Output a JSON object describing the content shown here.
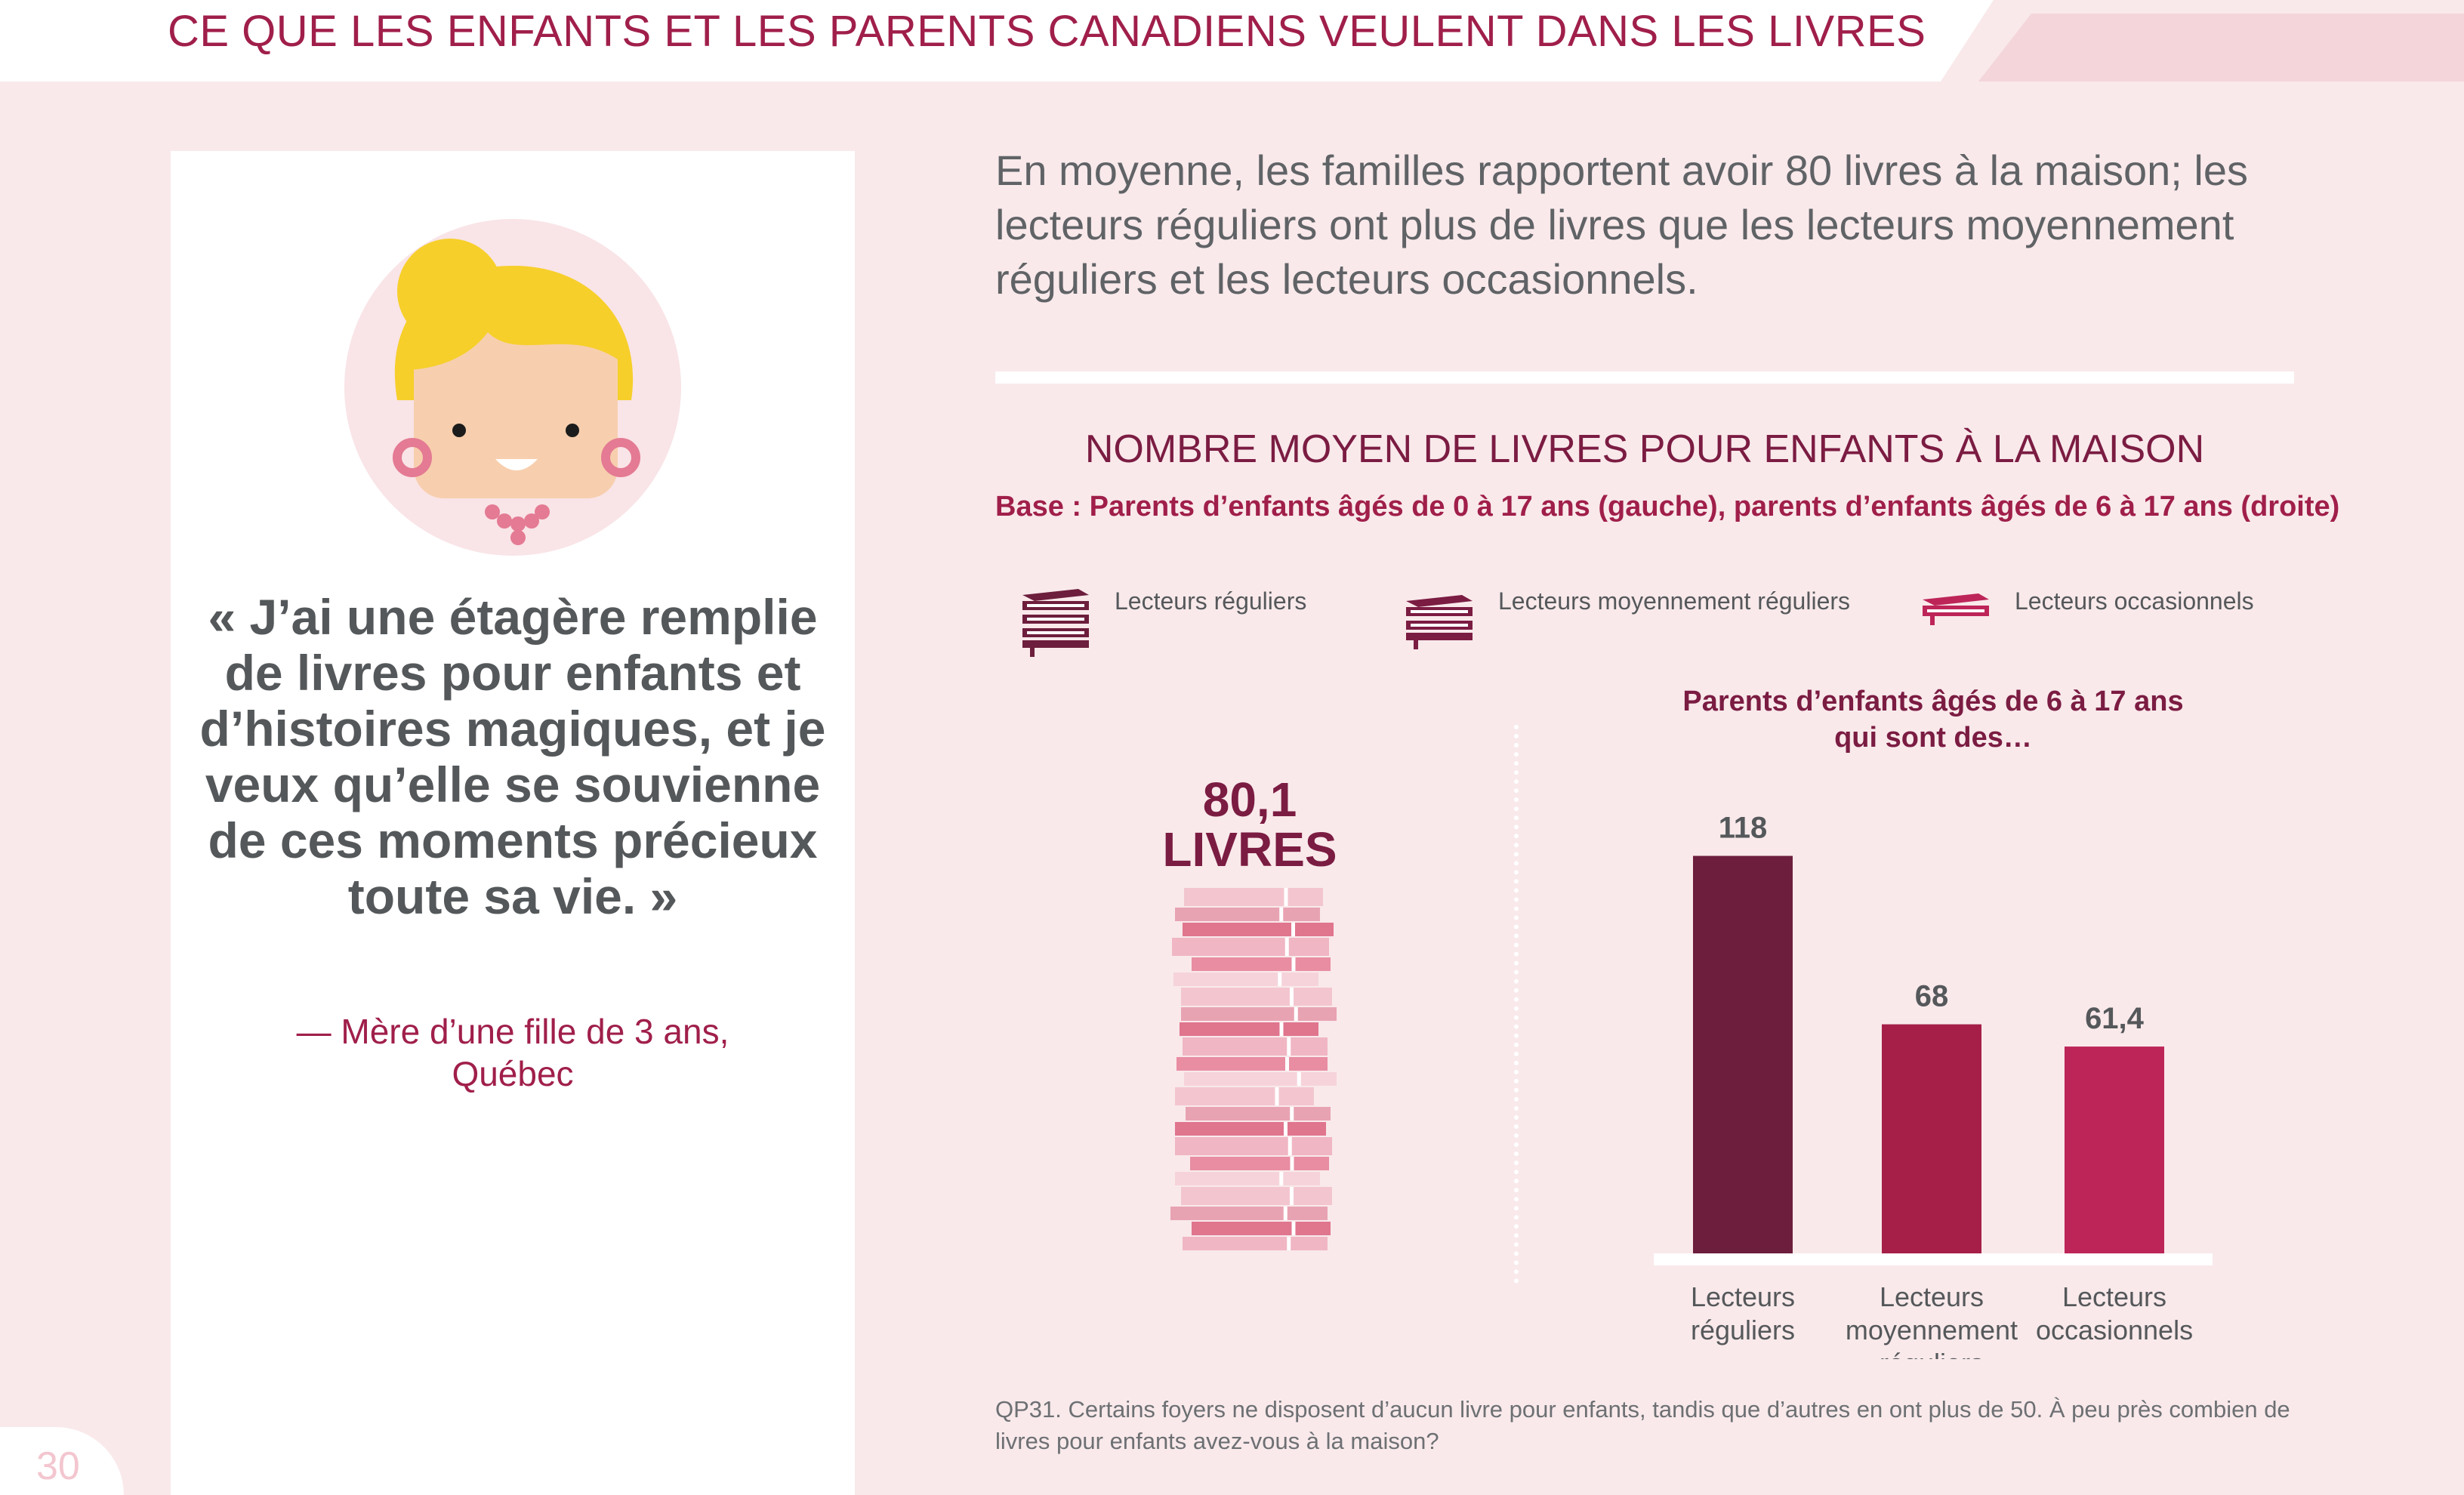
{
  "header": {
    "title": "CE QUE LES ENFANTS ET LES PARENTS CANADIENS VEULENT DANS LES LIVRES"
  },
  "page_number": "30",
  "quote": {
    "text": "« J’ai une étagère remplie de livres pour enfants et d’histoires magiques, et je veux qu’elle se souvienne de ces moments précieux toute sa vie. »",
    "attribution_line1": "— Mère d’une fille de 3 ans,",
    "attribution_line2": "Québec"
  },
  "intro": {
    "text": "En moyenne, les familles rapportent avoir 80 livres à la maison; les lecteurs réguliers ont plus de livres que les lecteurs moyennement réguliers et les lecteurs occasionnels."
  },
  "legend": [
    {
      "label": "Lecteurs réguliers",
      "icon": "book-stack-large-icon"
    },
    {
      "label": "Lecteurs moyennement réguliers",
      "icon": "book-stack-medium-icon"
    },
    {
      "label": "Lecteurs occasionnels",
      "icon": "book-single-icon"
    }
  ],
  "total": {
    "value": "80,1",
    "unit": "LIVRES"
  },
  "colors": {
    "regular": "#6d1e3c",
    "moderate": "#a51f48",
    "occasional": "#bd2558",
    "accent": "#a01f4a",
    "background": "#f9e9eb"
  },
  "chart_data": {
    "type": "bar",
    "title": "NOMBRE MOYEN DE LIVRES POUR ENFANTS À LA MAISON",
    "subtitle": "Base : Parents d’enfants âgés de 0 à 17 ans (gauche), parents d’enfants âgés de 6 à 17 ans (droite)",
    "group_title_line1": "Parents d’enfants âgés de 6 à 17 ans",
    "group_title_line2": "qui sont des…",
    "categories": [
      [
        "Lecteurs",
        "réguliers"
      ],
      [
        "Lecteurs",
        "moyennement",
        "réguliers"
      ],
      [
        "Lecteurs",
        "occasionnels"
      ]
    ],
    "values": [
      118,
      68,
      61.4
    ],
    "value_labels": [
      "118",
      "68",
      "61,4"
    ],
    "bar_colors": [
      "#6d1e3c",
      "#a51f48",
      "#bd2558"
    ],
    "ylim": [
      0,
      130
    ],
    "grid": false
  },
  "footnote": "QP31. Certains foyers ne disposent d’aucun livre pour enfants, tandis que d’autres en ont plus de 50. À peu près combien de livres pour enfants avez-vous à la maison?"
}
